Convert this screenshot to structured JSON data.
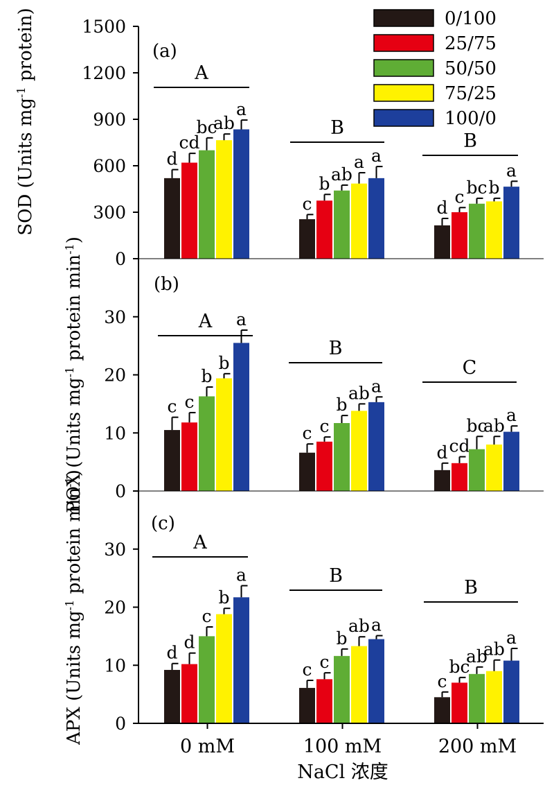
{
  "colors": {
    "0/100": "#231815",
    "25/75": "#e60012",
    "50/50": "#5fad35",
    "75/25": "#fff200",
    "100/0": "#1d3f9c"
  },
  "legend": [
    "0/100",
    "25/75",
    "50/50",
    "75/25",
    "100/0"
  ],
  "x_title": "NaCl 浓度",
  "chart_data": [
    {
      "type": "bar",
      "panel": "(a)",
      "ylabel_parts": [
        "SOD (Units mg",
        "-1",
        " protein)"
      ],
      "ylim": [
        0,
        1500
      ],
      "yticks": [
        0,
        300,
        600,
        900,
        1200,
        1500
      ],
      "categories": [
        "0 mM",
        "100 mM",
        "200 mM"
      ],
      "series": [
        {
          "name": "0/100",
          "values": [
            520,
            255,
            215
          ],
          "errors": [
            55,
            30,
            45
          ]
        },
        {
          "name": "25/75",
          "values": [
            620,
            375,
            300
          ],
          "errors": [
            60,
            40,
            30
          ]
        },
        {
          "name": "50/50",
          "values": [
            700,
            440,
            355
          ],
          "errors": [
            80,
            35,
            35
          ]
        },
        {
          "name": "75/25",
          "values": [
            765,
            485,
            370
          ],
          "errors": [
            40,
            70,
            20
          ]
        },
        {
          "name": "100/0",
          "values": [
            835,
            520,
            465
          ],
          "errors": [
            60,
            75,
            35
          ]
        }
      ],
      "letters": [
        [
          "d",
          "cd",
          "bc",
          "ab",
          "a"
        ],
        [
          "c",
          "b",
          "ab",
          "a",
          "a"
        ],
        [
          "d",
          "c",
          "bc",
          "b",
          "a"
        ]
      ],
      "groups": [
        "A",
        "B",
        "B"
      ]
    },
    {
      "type": "bar",
      "panel": "(b)",
      "ylabel_parts": [
        "POX (Units mg",
        "-1",
        " protein min",
        "-1",
        ")"
      ],
      "ylim": [
        0,
        40
      ],
      "yticks": [
        0,
        10,
        20,
        30
      ],
      "categories": [
        "0 mM",
        "100 mM",
        "200 mM"
      ],
      "series": [
        {
          "name": "0/100",
          "values": [
            10.5,
            6.6,
            3.6
          ],
          "errors": [
            2.2,
            1.5,
            1.2
          ]
        },
        {
          "name": "25/75",
          "values": [
            11.8,
            8.5,
            4.8
          ],
          "errors": [
            1.7,
            0.8,
            1.1
          ]
        },
        {
          "name": "50/50",
          "values": [
            16.3,
            11.7,
            7.2
          ],
          "errors": [
            1.6,
            1.3,
            2.2
          ]
        },
        {
          "name": "75/25",
          "values": [
            19.4,
            13.8,
            8.0
          ],
          "errors": [
            0.8,
            1.2,
            1.4
          ]
        },
        {
          "name": "100/0",
          "values": [
            25.5,
            15.3,
            10.2
          ],
          "errors": [
            2.2,
            0.9,
            1.0
          ]
        }
      ],
      "letters": [
        [
          "c",
          "c",
          "b",
          "b",
          "a"
        ],
        [
          "c",
          "c",
          "b",
          "ab",
          "a"
        ],
        [
          "d",
          "cd",
          "bc",
          "ab",
          "a"
        ]
      ],
      "groups": [
        "A",
        "B",
        "C"
      ]
    },
    {
      "type": "bar",
      "panel": "(c)",
      "ylabel_parts": [
        "APX (Units mg",
        "-1",
        " protein min",
        "-1",
        ")"
      ],
      "ylim": [
        0,
        40
      ],
      "yticks": [
        0,
        10,
        20,
        30
      ],
      "categories": [
        "0 mM",
        "100 mM",
        "200 mM"
      ],
      "series": [
        {
          "name": "0/100",
          "values": [
            9.2,
            6.1,
            4.5
          ],
          "errors": [
            1.1,
            1.3,
            0.9
          ]
        },
        {
          "name": "25/75",
          "values": [
            10.2,
            7.6,
            7.0
          ],
          "errors": [
            1.9,
            1.1,
            0.9
          ]
        },
        {
          "name": "50/50",
          "values": [
            15.0,
            11.6,
            8.5
          ],
          "errors": [
            1.6,
            1.2,
            1.2
          ]
        },
        {
          "name": "75/25",
          "values": [
            18.8,
            13.3,
            9.0
          ],
          "errors": [
            1.0,
            1.6,
            1.9
          ]
        },
        {
          "name": "100/0",
          "values": [
            21.7,
            14.5,
            10.8
          ],
          "errors": [
            2.0,
            0.6,
            2.1
          ]
        }
      ],
      "letters": [
        [
          "d",
          "d",
          "c",
          "b",
          "a"
        ],
        [
          "c",
          "c",
          "b",
          "ab",
          "a"
        ],
        [
          "c",
          "bc",
          "ab",
          "ab",
          "a"
        ]
      ],
      "groups": [
        "A",
        "B",
        "B"
      ]
    }
  ]
}
